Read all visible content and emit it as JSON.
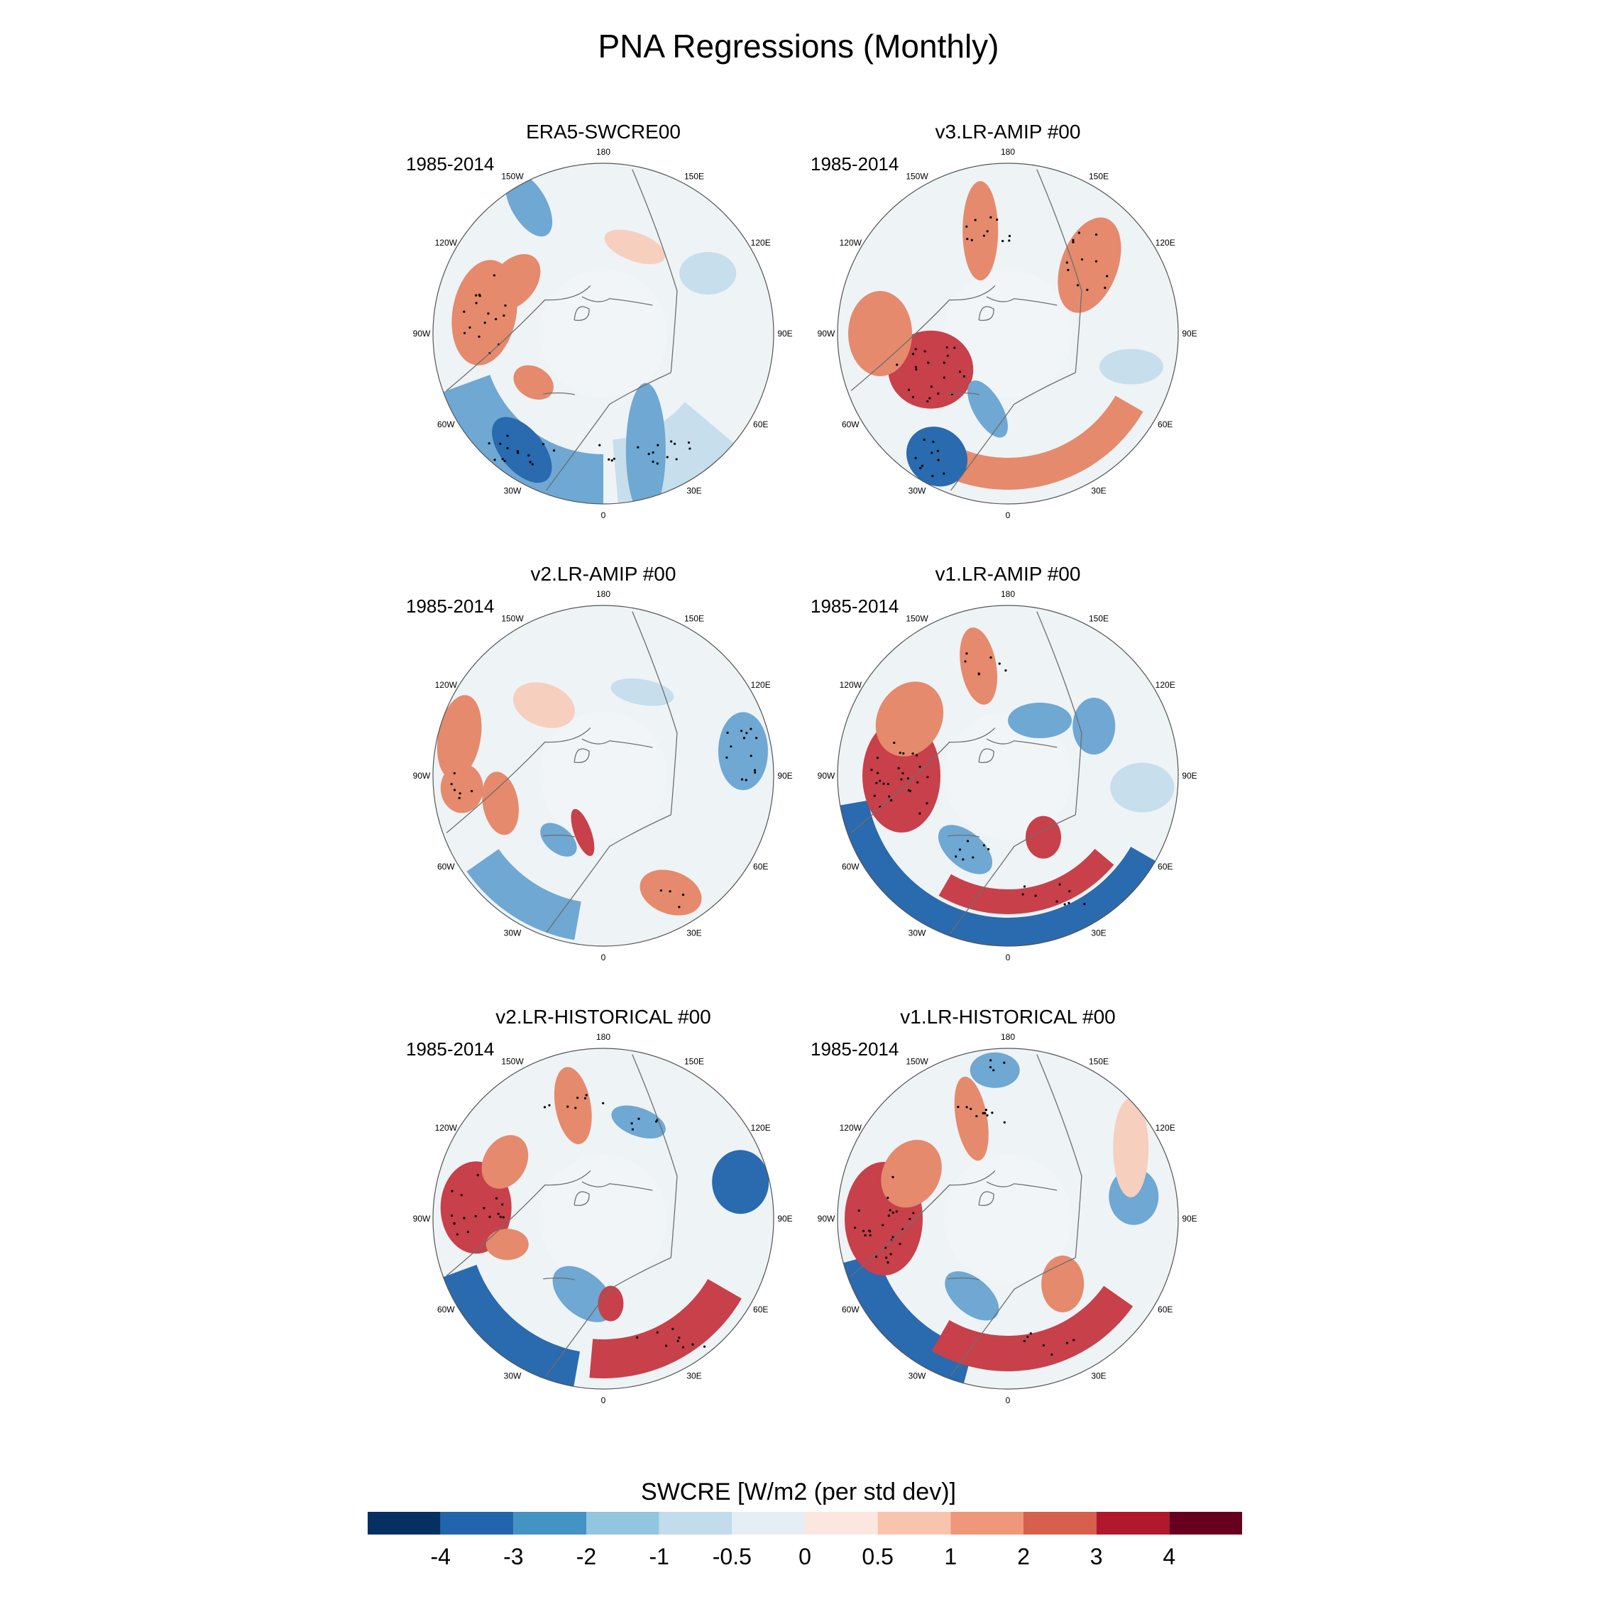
{
  "title": "PNA Regressions (Monthly)",
  "panels": [
    {
      "title": "ERA5-SWCRE00",
      "period": "1985-2014"
    },
    {
      "title": "v3.LR-AMIP  #00",
      "period": "1985-2014"
    },
    {
      "title": "v2.LR-AMIP  #00",
      "period": "1985-2014"
    },
    {
      "title": "v1.LR-AMIP  #00",
      "period": "1985-2014"
    },
    {
      "title": "v2.LR-HISTORICAL  #00",
      "period": "1985-2014"
    },
    {
      "title": "v1.LR-HISTORICAL  #00",
      "period": "1985-2014"
    }
  ],
  "longitude_labels": [
    "180",
    "150E",
    "120E",
    "90E",
    "60E",
    "30E",
    "0",
    "30W",
    "60W",
    "90W",
    "120W",
    "150W"
  ],
  "colorbar": {
    "title": "SWCRE [W/m2 (per std dev)]",
    "levels": [
      "-4",
      "-3",
      "-2",
      "-1",
      "-0.5",
      "0",
      "0.5",
      "1",
      "2",
      "3",
      "4"
    ],
    "colors": [
      "#053061",
      "#2166ac",
      "#4393c3",
      "#92c5de",
      "#c2dceb",
      "#e5eef4",
      "#fbe7df",
      "#f9c4ad",
      "#ee977b",
      "#d6604d",
      "#b2182b",
      "#67001f"
    ]
  },
  "field_colors": {
    "neutral": "#eef3f6",
    "light_blue": "#c7deec",
    "mid_blue": "#6fa8d2",
    "dark_blue": "#2a6aae",
    "light_red": "#f6cfbf",
    "mid_red": "#e58a6d",
    "dark_red": "#c8404a",
    "coast": "#6e6e6e"
  }
}
